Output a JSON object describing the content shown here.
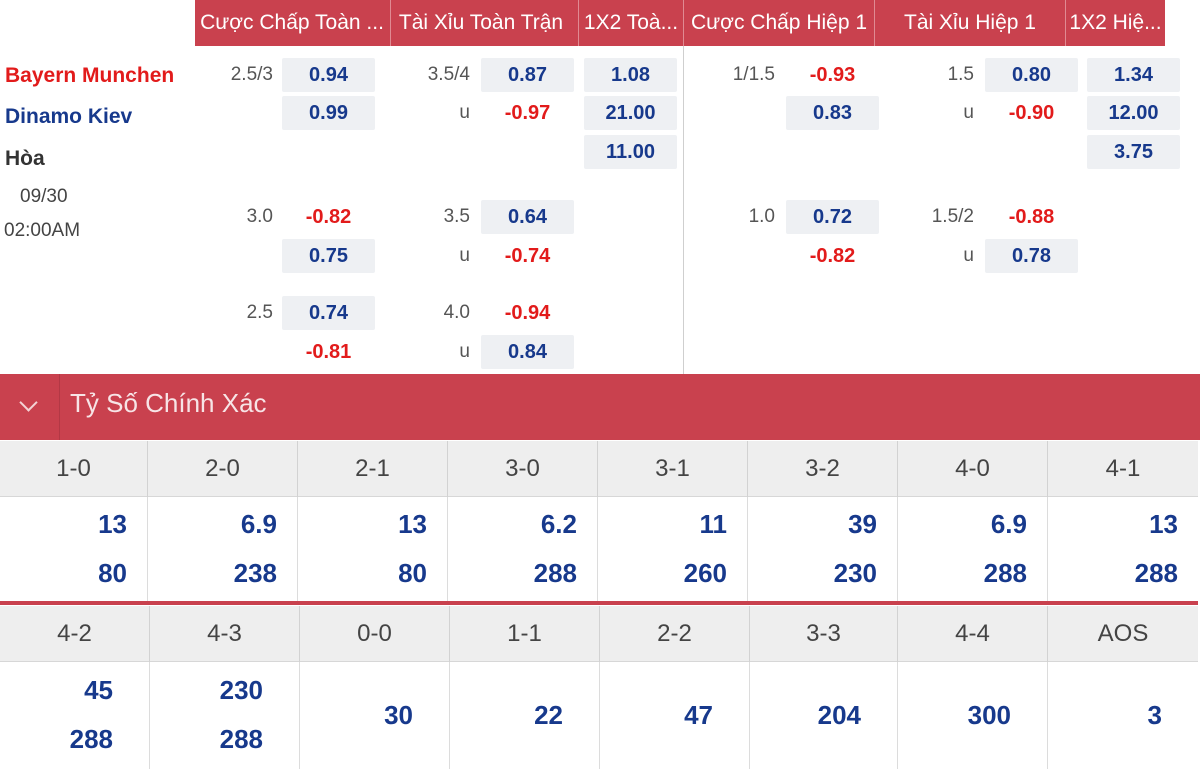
{
  "headers": [
    "Cược Chấp Toàn ...",
    "Tài Xỉu Toàn Trận",
    "1X2 Toà...",
    "Cược Chấp Hiệp 1",
    "Tài Xỉu Hiệp 1",
    "1X2 Hiệ..."
  ],
  "match": {
    "home": "Bayern Munchen",
    "away": "Dinamo Kiev",
    "draw": "Hòa",
    "date": "09/30",
    "time": "02:00AM"
  },
  "rows": [
    {
      "ah_line": "2.5/3",
      "ah_home": "0.94",
      "ah_away": "0.99",
      "ou_line": "3.5/4",
      "ou_over": "0.87",
      "ou_u": "u",
      "ou_under": "-0.97",
      "x12_home": "1.08",
      "x12_away": "21.00",
      "x12_draw": "11.00",
      "h1_ah_line": "1/1.5",
      "h1_ah_home": "-0.93",
      "h1_ah_away": "0.83",
      "h1_ou_line": "1.5",
      "h1_ou_over": "0.80",
      "h1_ou_u": "u",
      "h1_ou_under": "-0.90",
      "h1_x12_home": "1.34",
      "h1_x12_away": "12.00",
      "h1_x12_draw": "3.75"
    },
    {
      "ah_line": "3.0",
      "ah_home": "-0.82",
      "ah_away": "0.75",
      "ou_line": "3.5",
      "ou_over": "0.64",
      "ou_u": "u",
      "ou_under": "-0.74",
      "h1_ah_line": "1.0",
      "h1_ah_home": "0.72",
      "h1_ah_away": "-0.82",
      "h1_ou_line": "1.5/2",
      "h1_ou_over": "-0.88",
      "h1_ou_u": "u",
      "h1_ou_under": "0.78"
    },
    {
      "ah_line": "2.5",
      "ah_home": "0.74",
      "ah_away": "-0.81",
      "ou_line": "4.0",
      "ou_over": "-0.94",
      "ou_u": "u",
      "ou_under": "0.84"
    }
  ],
  "correct_score": {
    "title": "Tỷ Số Chính Xác",
    "row1": [
      {
        "score": "1-0",
        "a": "13",
        "b": "80"
      },
      {
        "score": "2-0",
        "a": "6.9",
        "b": "238"
      },
      {
        "score": "2-1",
        "a": "13",
        "b": "80"
      },
      {
        "score": "3-0",
        "a": "6.2",
        "b": "288"
      },
      {
        "score": "3-1",
        "a": "11",
        "b": "260"
      },
      {
        "score": "3-2",
        "a": "39",
        "b": "230"
      },
      {
        "score": "4-0",
        "a": "6.9",
        "b": "288"
      },
      {
        "score": "4-1",
        "a": "13",
        "b": "288"
      }
    ],
    "row2": [
      {
        "score": "4-2",
        "a": "45",
        "b": "288"
      },
      {
        "score": "4-3",
        "a": "230",
        "b": "288"
      },
      {
        "score": "0-0",
        "a": "30"
      },
      {
        "score": "1-1",
        "a": "22"
      },
      {
        "score": "2-2",
        "a": "47"
      },
      {
        "score": "3-3",
        "a": "204"
      },
      {
        "score": "4-4",
        "a": "300"
      },
      {
        "score": "AOS",
        "a": "3"
      }
    ]
  },
  "colors": {
    "accent": "#c9414e",
    "positive": "#17398c",
    "negative": "#e21b1b"
  }
}
